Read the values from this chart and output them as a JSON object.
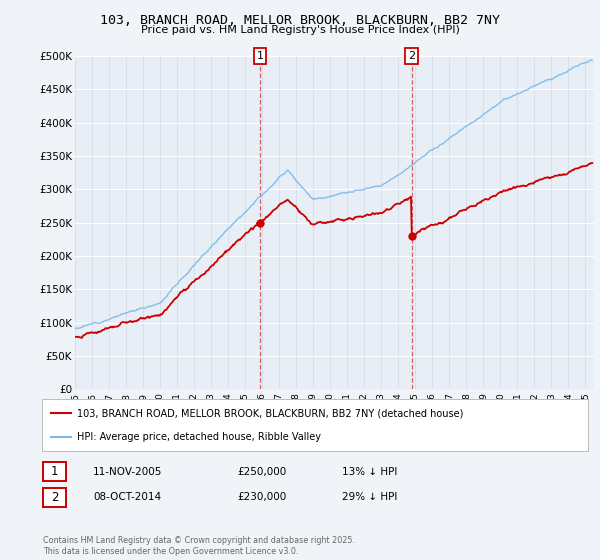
{
  "title": "103, BRANCH ROAD, MELLOR BROOK, BLACKBURN, BB2 7NY",
  "subtitle": "Price paid vs. HM Land Registry's House Price Index (HPI)",
  "ylabel_ticks": [
    "£0",
    "£50K",
    "£100K",
    "£150K",
    "£200K",
    "£250K",
    "£300K",
    "£350K",
    "£400K",
    "£450K",
    "£500K"
  ],
  "ytick_vals": [
    0,
    50000,
    100000,
    150000,
    200000,
    250000,
    300000,
    350000,
    400000,
    450000,
    500000
  ],
  "xlim_start": 1995,
  "xlim_end": 2025.5,
  "ylim_min": 0,
  "ylim_max": 500000,
  "hpi_color": "#7ab8e8",
  "price_color": "#cc0000",
  "sale1_date": 2005.87,
  "sale1_price": 250000,
  "sale2_date": 2014.78,
  "sale2_price": 230000,
  "marker1_label": "1",
  "marker2_label": "2",
  "legend_house": "103, BRANCH ROAD, MELLOR BROOK, BLACKBURN, BB2 7NY (detached house)",
  "legend_hpi": "HPI: Average price, detached house, Ribble Valley",
  "table_row1_date": "11-NOV-2005",
  "table_row1_price": "£250,000",
  "table_row1_hpi": "13% ↓ HPI",
  "table_row2_date": "08-OCT-2014",
  "table_row2_price": "£230,000",
  "table_row2_hpi": "29% ↓ HPI",
  "footnote": "Contains HM Land Registry data © Crown copyright and database right 2025.\nThis data is licensed under the Open Government Licence v3.0.",
  "background_color": "#f0f4f8",
  "plot_bg_color": "#e8eef6"
}
